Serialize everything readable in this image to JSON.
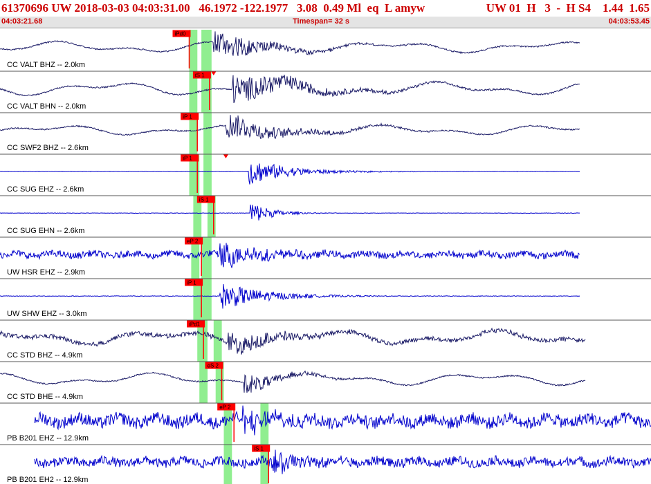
{
  "header": {
    "event_line": "61370696 UW 2018-03-03 04:03:31.00   46.1972 -122.1977   3.08  0.49 Ml  eq  L amyw",
    "station_line": "UW 01  H   3  -  H S4    1.44  1.65",
    "start_time": "04:03:21.68",
    "timespan": "Timespan=  32 s",
    "end_time": "04:03:53.45"
  },
  "colors": {
    "title_red": "#cc0000",
    "pick_red": "#ff0000",
    "highlight_green": "#90ee90",
    "trace_dark": "#1a1a66",
    "trace_blue": "#0000cc",
    "separator": "#555555"
  },
  "chart_data": {
    "type": "line",
    "time_span_s": 32,
    "channels": [
      {
        "label": "CC VALT BHZ -- 2.0km",
        "color": "dark",
        "style": "smooth",
        "noise": 0.55,
        "amp": 0.55,
        "onset": 10.5,
        "quake_amp": 1.0,
        "quake_dur": 4.0,
        "x_start": 0.0,
        "x_end": 28.5
      },
      {
        "label": "CC VALT BHN -- 2.0km",
        "color": "dark",
        "style": "smooth",
        "noise": 0.9,
        "amp": 0.65,
        "onset": 11.4,
        "quake_amp": 1.0,
        "quake_dur": 5.5,
        "x_start": 0.0,
        "x_end": 28.5
      },
      {
        "label": "CC SWF2 BHZ -- 2.6km",
        "color": "dark",
        "style": "smooth",
        "noise": 0.6,
        "amp": 0.5,
        "onset": 11.1,
        "quake_amp": 0.9,
        "quake_dur": 4.5,
        "x_start": 0.0,
        "x_end": 28.5
      },
      {
        "label": "CC SUG EHZ -- 2.6km",
        "color": "blue",
        "style": "flat",
        "noise": 0.04,
        "amp": 0.04,
        "onset": 12.2,
        "quake_amp": 0.95,
        "quake_dur": 3.0,
        "x_start": 0.0,
        "x_end": 28.5
      },
      {
        "label": "CC SUG EHN -- 2.6km",
        "color": "blue",
        "style": "flat",
        "noise": 0.04,
        "amp": 0.04,
        "onset": 12.3,
        "quake_amp": 0.85,
        "quake_dur": 1.5,
        "x_start": 0.0,
        "x_end": 28.5
      },
      {
        "label": "UW HSR EHZ -- 2.9km",
        "color": "blue",
        "style": "noisy",
        "noise": 0.4,
        "amp": 0.4,
        "onset": 10.8,
        "quake_amp": 1.0,
        "quake_dur": 3.0,
        "x_start": 0.0,
        "x_end": 28.5
      },
      {
        "label": "UW SHW EHZ -- 3.0km",
        "color": "blue",
        "style": "flat",
        "noise": 0.05,
        "amp": 0.05,
        "onset": 10.8,
        "quake_amp": 0.95,
        "quake_dur": 3.5,
        "x_start": 0.0,
        "x_end": 28.5
      },
      {
        "label": "CC STD BHZ -- 4.9km",
        "color": "dark",
        "style": "smooth_noisy",
        "noise": 0.7,
        "amp": 0.7,
        "onset": 11.2,
        "quake_amp": 0.8,
        "quake_dur": 3.5,
        "x_start": 0.0,
        "x_end": 28.8
      },
      {
        "label": "CC STD BHE -- 4.9km",
        "color": "dark",
        "style": "smooth",
        "noise": 0.95,
        "amp": 0.6,
        "onset": 12.0,
        "quake_amp": 0.7,
        "quake_dur": 3.0,
        "x_start": 0.0,
        "x_end": 28.8
      },
      {
        "label": "PB B201 EHZ -- 12.9km",
        "color": "blue",
        "style": "noisy",
        "noise": 0.75,
        "amp": 0.75,
        "onset": 11.8,
        "quake_amp": 0.8,
        "quake_dur": 3.0,
        "x_start": 1.7,
        "x_end": 32.0
      },
      {
        "label": "PB B201 EH2 -- 12.9km",
        "color": "blue",
        "style": "noisy",
        "noise": 0.55,
        "amp": 0.55,
        "onset": 13.2,
        "quake_amp": 0.8,
        "quake_dur": 3.0,
        "x_start": 1.7,
        "x_end": 32.0
      }
    ],
    "picks": [
      {
        "channel": 0,
        "label": "iPd0",
        "t": 9.3,
        "green": [
          9.3,
          9.7
        ],
        "green2": [
          9.9,
          10.4
        ]
      },
      {
        "channel": 1,
        "label": "iS 1",
        "t": 10.3,
        "green": [
          9.3,
          9.7
        ],
        "green2": [
          9.9,
          10.4
        ],
        "marker": 10.5
      },
      {
        "channel": 2,
        "label": "iP 1",
        "t": 9.7,
        "green": [
          9.3,
          9.7
        ],
        "green2": [
          10.0,
          10.4
        ]
      },
      {
        "channel": 3,
        "label": "iP 1",
        "t": 9.7,
        "green": [
          9.3,
          9.8
        ],
        "green2": [
          10.0,
          10.4
        ],
        "marker": 11.1
      },
      {
        "channel": 4,
        "label": "iS 1",
        "t": 10.5,
        "green": [
          9.5,
          9.9
        ],
        "green2": [
          10.2,
          10.6
        ]
      },
      {
        "channel": 5,
        "label": "eP 2",
        "t": 9.9,
        "green": [
          9.4,
          9.8
        ],
        "green2": [
          9.9,
          10.4
        ]
      },
      {
        "channel": 6,
        "label": "iP 1",
        "t": 9.9,
        "green": [
          9.5,
          9.9
        ],
        "green2": [
          9.9,
          10.4
        ]
      },
      {
        "channel": 7,
        "label": "iPd1",
        "t": 10.0,
        "green": [
          9.7,
          10.2
        ],
        "green2": [
          10.5,
          10.9
        ]
      },
      {
        "channel": 8,
        "label": "eS 2",
        "t": 10.9,
        "green": [
          9.8,
          10.2
        ],
        "green2": [
          10.6,
          11.0
        ]
      },
      {
        "channel": 9,
        "label": "eP 2",
        "t": 11.5,
        "green": [
          11.0,
          11.4
        ],
        "green2": [
          12.8,
          13.2
        ]
      },
      {
        "channel": 10,
        "label": "iS 1",
        "t": 13.2,
        "green": [
          11.0,
          11.4
        ],
        "green2": [
          12.8,
          13.2
        ]
      }
    ]
  }
}
